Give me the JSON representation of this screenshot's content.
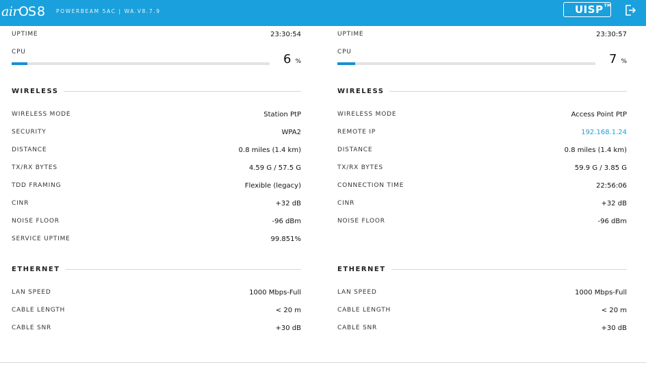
{
  "header": {
    "logo_main": "air",
    "logo_os": "OS",
    "logo_version": "8",
    "device": "POWERBEAM 5AC | WA.V8.7.9",
    "uisp_label": "UISP",
    "uisp_tm": "TM",
    "colors": {
      "bar": "#1aa0dc",
      "uisp_dot": "#3ee04a"
    }
  },
  "left": {
    "uptime_label": "UPTIME",
    "uptime_value": "23:30:54",
    "cpu_label": "CPU",
    "cpu_value": "6",
    "cpu_unit": "%",
    "cpu_percent": 6,
    "wireless": {
      "title": "WIRELESS",
      "rows": [
        {
          "label": "WIRELESS MODE",
          "value": "Station PtP"
        },
        {
          "label": "SECURITY",
          "value": "WPA2"
        },
        {
          "label": "DISTANCE",
          "value": "0.8 miles (1.4 km)"
        },
        {
          "label": "TX/RX BYTES",
          "value": "4.59 G / 57.5 G"
        },
        {
          "label": "TDD FRAMING",
          "value": "Flexible (legacy)"
        },
        {
          "label": "CINR",
          "value": "+32 dB"
        },
        {
          "label": "NOISE FLOOR",
          "value": "-96 dBm"
        },
        {
          "label": "SERVICE UPTIME",
          "value": "99.851%"
        }
      ]
    },
    "ethernet": {
      "title": "ETHERNET",
      "rows": [
        {
          "label": "LAN SPEED",
          "value": "1000 Mbps-Full"
        },
        {
          "label": "CABLE LENGTH",
          "value": "< 20 m"
        },
        {
          "label": "CABLE SNR",
          "value": "+30 dB"
        }
      ]
    }
  },
  "right": {
    "uptime_label": "UPTIME",
    "uptime_value": "23:30:57",
    "cpu_label": "CPU",
    "cpu_value": "7",
    "cpu_unit": "%",
    "cpu_percent": 7,
    "wireless": {
      "title": "WIRELESS",
      "rows": [
        {
          "label": "WIRELESS MODE",
          "value": "Access Point PtP"
        },
        {
          "label": "REMOTE IP",
          "value": "192.168.1.24"
        },
        {
          "label": "DISTANCE",
          "value": "0.8 miles (1.4 km)"
        },
        {
          "label": "TX/RX BYTES",
          "value": "59.9 G / 3.85 G"
        },
        {
          "label": "CONNECTION TIME",
          "value": "22:56:06"
        },
        {
          "label": "CINR",
          "value": "+32 dB"
        },
        {
          "label": "NOISE FLOOR",
          "value": "-96 dBm"
        }
      ]
    },
    "ethernet": {
      "title": "ETHERNET",
      "rows": [
        {
          "label": "LAN SPEED",
          "value": "1000 Mbps-Full"
        },
        {
          "label": "CABLE LENGTH",
          "value": "< 20 m"
        },
        {
          "label": "CABLE SNR",
          "value": "+30 dB"
        }
      ]
    }
  }
}
